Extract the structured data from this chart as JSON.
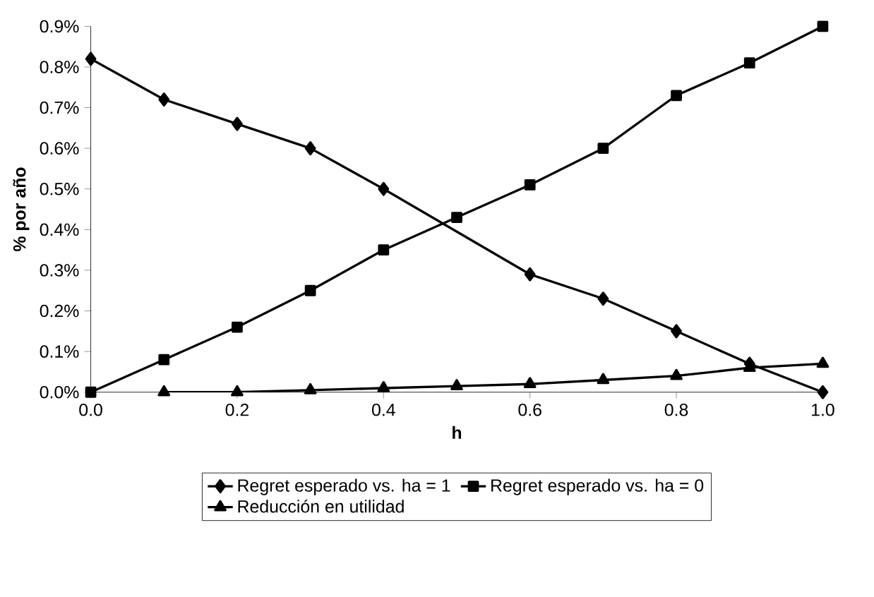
{
  "chart_data": {
    "type": "line",
    "xlabel": "h",
    "ylabel": "% por año",
    "x": [
      0,
      0.1,
      0.2,
      0.3,
      0.4,
      0.5,
      0.6,
      0.7,
      0.8,
      0.9,
      1.0
    ],
    "series": [
      {
        "name": "Regret esperado vs. ha = 1",
        "color": "#000000",
        "marker": "diamond",
        "values": [
          0.82,
          0.72,
          0.66,
          0.6,
          0.5,
          null,
          0.29,
          0.23,
          0.15,
          0.07,
          0.0
        ]
      },
      {
        "name": "Regret esperado vs. ha = 0",
        "color": "#000000",
        "marker": "square",
        "values": [
          0.0,
          0.08,
          0.16,
          0.25,
          0.35,
          0.43,
          0.51,
          0.6,
          0.73,
          0.81,
          0.9
        ]
      },
      {
        "name": "Reducción en utilidad",
        "color": "#000000",
        "marker": "triangle",
        "values": [
          null,
          0.0,
          0.0,
          0.005,
          0.01,
          0.015,
          0.02,
          0.03,
          0.04,
          0.06,
          0.07
        ]
      }
    ],
    "xlim": [
      0,
      1
    ],
    "ylim": [
      0,
      0.9
    ],
    "xticks": [
      {
        "value": 0,
        "label": "0.0"
      },
      {
        "value": 0.2,
        "label": "0.2"
      },
      {
        "value": 0.4,
        "label": "0.4"
      },
      {
        "value": 0.6,
        "label": "0.6"
      },
      {
        "value": 0.8,
        "label": "0.8"
      },
      {
        "value": 1.0,
        "label": "1.0"
      }
    ],
    "yticks": [
      {
        "value": 0,
        "label": "0.0%"
      },
      {
        "value": 0.1,
        "label": "0.1%"
      },
      {
        "value": 0.2,
        "label": "0.2%"
      },
      {
        "value": 0.3,
        "label": "0.3%"
      },
      {
        "value": 0.4,
        "label": "0.4%"
      },
      {
        "value": 0.5,
        "label": "0.5%"
      },
      {
        "value": 0.6,
        "label": "0.6%"
      },
      {
        "value": 0.7,
        "label": "0.7%"
      },
      {
        "value": 0.8,
        "label": "0.8%"
      },
      {
        "value": 0.9,
        "label": "0.9%"
      }
    ],
    "legend": "bottom",
    "line_style": "solid"
  }
}
